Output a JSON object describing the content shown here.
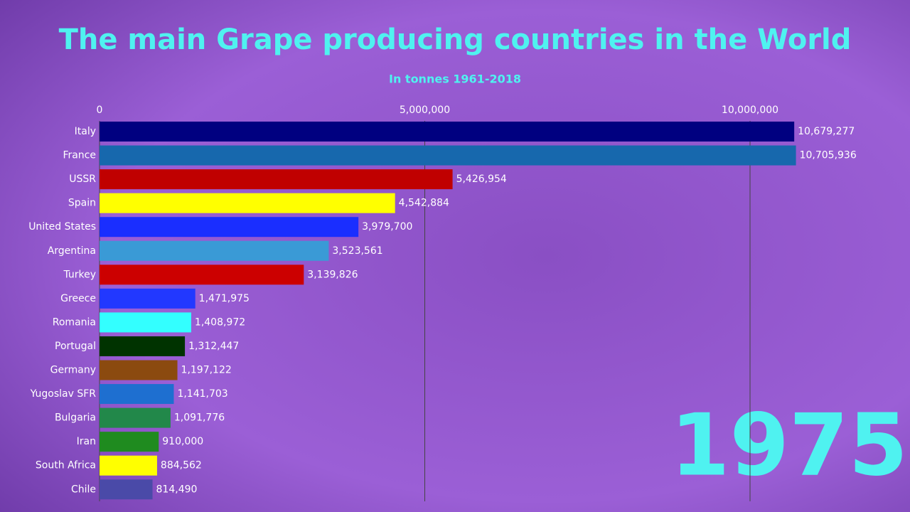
{
  "chart_data": {
    "type": "hbar",
    "title": "The main Grape producing countries in the World",
    "subtitle": "In tonnes 1961-2018",
    "year": "1975",
    "categories": [
      "Italy",
      "France",
      "USSR",
      "Spain",
      "United States",
      "Argentina",
      "Turkey",
      "Greece",
      "Romania",
      "Portugal",
      "Germany",
      "Yugoslav SFR",
      "Bulgaria",
      "Iran",
      "South Africa",
      "Chile"
    ],
    "values": [
      10679277,
      10705936,
      5426954,
      4542884,
      3979700,
      3523561,
      3139826,
      1471975,
      1408972,
      1312447,
      1197122,
      1141703,
      1091776,
      910000,
      884562,
      814490
    ],
    "value_labels": [
      "10,679,277",
      "10,705,936",
      "5,426,954",
      "4,542,884",
      "3,979,700",
      "3,523,561",
      "3,139,826",
      "1,471,975",
      "1,408,972",
      "1,312,447",
      "1,197,122",
      "1,141,703",
      "1,091,776",
      "910,000",
      "884,562",
      "814,490"
    ],
    "colors": [
      "#000080",
      "#1768ad",
      "#c00000",
      "#ffff00",
      "#1a2eff",
      "#3a9ad6",
      "#cc0000",
      "#2238ff",
      "#33ffff",
      "#003300",
      "#8b4a0f",
      "#1e6fd0",
      "#22884a",
      "#1f8b1f",
      "#ffff00",
      "#4a4aa8"
    ],
    "xlim": [
      0,
      12000000
    ],
    "xticks": [
      0,
      {
        "value": 5000000,
        "label": "5,000,000"
      },
      {
        "value": 10000000,
        "label": "10,000,000"
      }
    ],
    "grid": true
  }
}
